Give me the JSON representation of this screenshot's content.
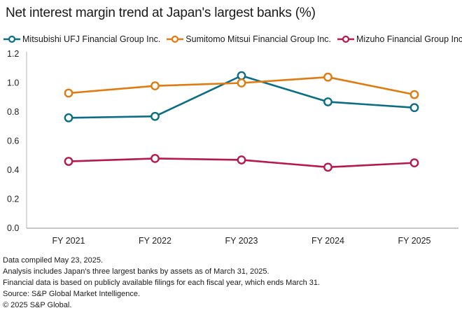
{
  "chart_data": {
    "type": "line",
    "title": "Net interest margin trend at Japan's largest banks (%)",
    "xlabel": "",
    "ylabel": "",
    "categories": [
      "FY 2021",
      "FY 2022",
      "FY 2023",
      "FY 2024",
      "FY 2025"
    ],
    "ylim": [
      0,
      1.2
    ],
    "yticks": [
      "0.0",
      "0.2",
      "0.4",
      "0.6",
      "0.8",
      "1.0",
      "1.2"
    ],
    "ytick_values": [
      0,
      0.2,
      0.4,
      0.6,
      0.8,
      1.0,
      1.2
    ],
    "grid": false,
    "legend_position": "top-left",
    "series": [
      {
        "name": "Mitsubishi UFJ Financial Group Inc.",
        "color": "#0b6e84",
        "values": [
          0.76,
          0.77,
          1.05,
          0.87,
          0.83
        ]
      },
      {
        "name": "Sumitomo Mitsui Financial Group Inc.",
        "color": "#e07b10",
        "values": [
          0.93,
          0.98,
          1.0,
          1.04,
          0.92
        ]
      },
      {
        "name": "Mizuho Financial Group Inc.",
        "color": "#b5194f",
        "values": [
          0.46,
          0.48,
          0.47,
          0.42,
          0.45
        ]
      }
    ]
  },
  "notes": [
    "Data compiled May 23, 2025.",
    "Analysis includes Japan's three largest banks by assets as of March 31, 2025.",
    "Financial data is based on publicly available filings for each fiscal year, which ends March 31.",
    "Source: S&P Global Market Intelligence.",
    "© 2025 S&P Global."
  ]
}
